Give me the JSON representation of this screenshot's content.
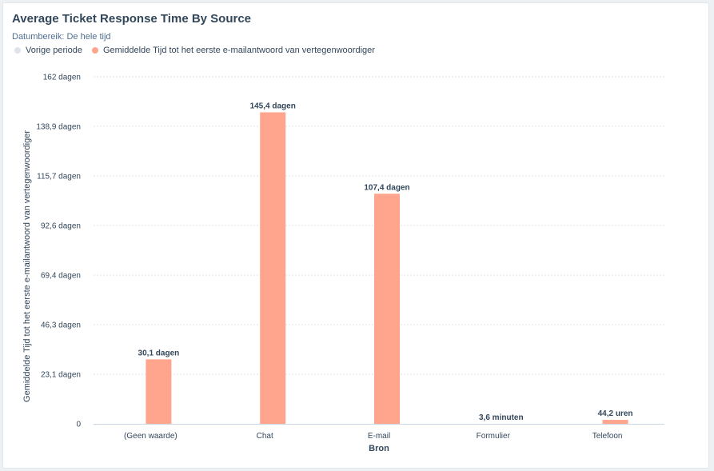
{
  "header": {
    "title": "Average Ticket Response Time By Source",
    "subtitle": "Datumbereik: De hele tijd"
  },
  "legend": [
    {
      "label": "Vorige periode",
      "color": "#dfe3eb"
    },
    {
      "label": "Gemiddelde Tijd tot het eerste e-mailantwoord van vertegenwoordiger",
      "color": "#ffa58d"
    }
  ],
  "chart_data": {
    "type": "bar",
    "xlabel": "Bron",
    "ylabel": "Gemiddelde Tijd tot het eerste e-mailantwoord van vertegenwoordiger",
    "categories": [
      "(Geen waarde)",
      "Chat",
      "E-mail",
      "Formulier",
      "Telefoon"
    ],
    "ylim": [
      0,
      162
    ],
    "y_unit": "dagen",
    "y_ticks": [
      0,
      23.1,
      46.3,
      69.4,
      92.6,
      115.7,
      138.9,
      162
    ],
    "y_tick_labels": [
      "0",
      "23,1 dagen",
      "46,3 dagen",
      "69,4 dagen",
      "92,6 dagen",
      "115,7 dagen",
      "138,9 dagen",
      "162 dagen"
    ],
    "series": [
      {
        "name": "Gemiddelde Tijd tot het eerste e-mailantwoord van vertegenwoordiger",
        "color": "#ffa58d",
        "values": [
          30.1,
          145.4,
          107.4,
          0.0025,
          1.842
        ],
        "labels": [
          "30,1 dagen",
          "145,4 dagen",
          "107,4 dagen",
          "3,6 minuten",
          "44,2 uren"
        ]
      }
    ],
    "grid": true
  }
}
